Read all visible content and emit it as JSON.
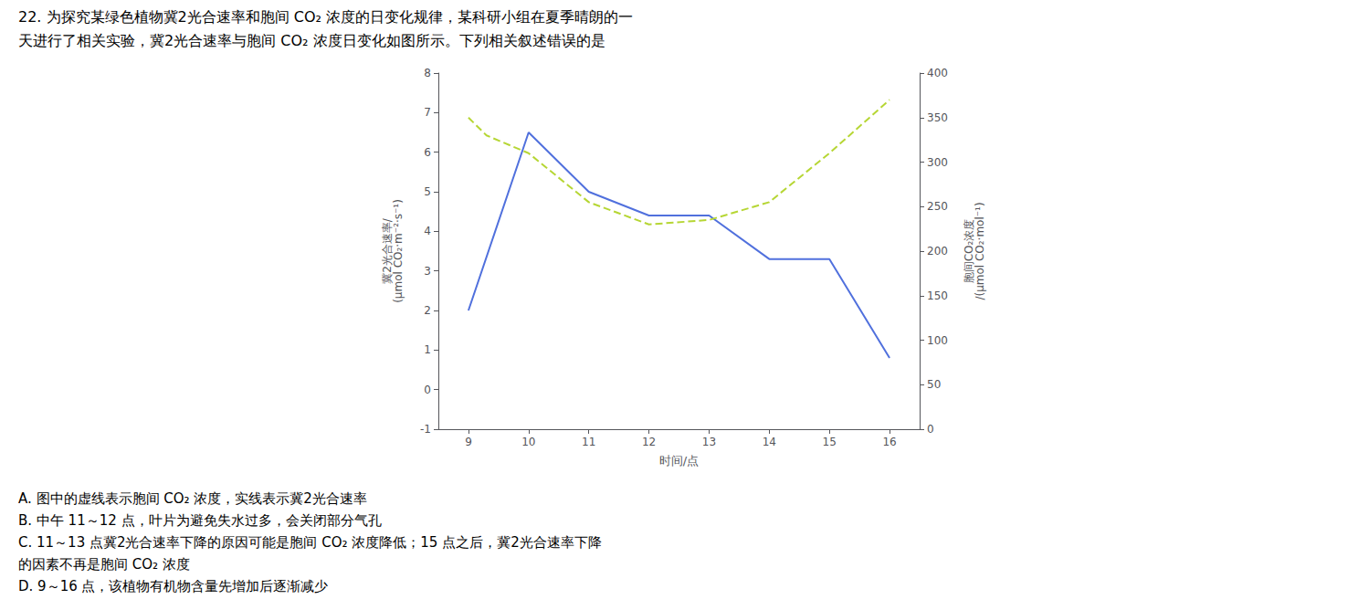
{
  "chart_data": {
    "type": "line",
    "annotations": [
      "22. 为探究某绿色植物冀2光合速率和胞间 CO₂ 浓度的日变化规律，某科研小组在夏季晴朗的一",
      "天进行了相关实验，冀2光合速率与胞间 CO₂ 浓度日变化如图所示。下列相关叙述错误的是",
      "A. 图中的虚线表示胞间 CO₂ 浓度，实线表示冀2光合速率",
      "B. 中午 11～12 点，叶片为避免失水过多，会关闭部分气孔",
      "C. 11～13 点冀2光合速率下降的原因可能是胞间 CO₂ 浓度降低；15 点之后，冀2光合速率下降",
      "的因素不再是胞间 CO₂ 浓度",
      "D. 9～16 点，该植物有机物含量先增加后逐渐减少"
    ],
    "xlabel": "时间/点",
    "ylabel": "冀2光合速率/\n(μmol CO₂·m⁻²·s⁻¹)",
    "y2label": "胞间CO₂浓度\n/(μmol CO₂·mol⁻¹)",
    "xlim": [
      8.5,
      16.5
    ],
    "xticks": [
      9,
      10,
      11,
      12,
      13,
      14,
      15,
      16
    ],
    "ylim": [
      -1,
      8
    ],
    "yticks": [
      -1,
      0,
      1,
      2,
      3,
      4,
      5,
      6,
      7,
      8
    ],
    "y2lim": [
      0,
      400
    ],
    "y2ticks": [
      0,
      50,
      100,
      150,
      200,
      250,
      300,
      350,
      400
    ],
    "grid": false,
    "series": [
      {
        "x": [
          9,
          10,
          11,
          12,
          13,
          14,
          15,
          16
        ],
        "values": [
          2.0,
          6.5,
          5.0,
          4.4,
          4.4,
          3.3,
          3.3,
          0.8
        ],
        "line_style": "solid"
      },
      {
        "x": [
          9,
          9.3,
          10,
          11,
          12,
          13,
          14,
          15,
          16
        ],
        "values": [
          350,
          330,
          310,
          255,
          230,
          235,
          255,
          310,
          370
        ],
        "line_style": "dashed",
        "axis": "y2"
      }
    ]
  }
}
